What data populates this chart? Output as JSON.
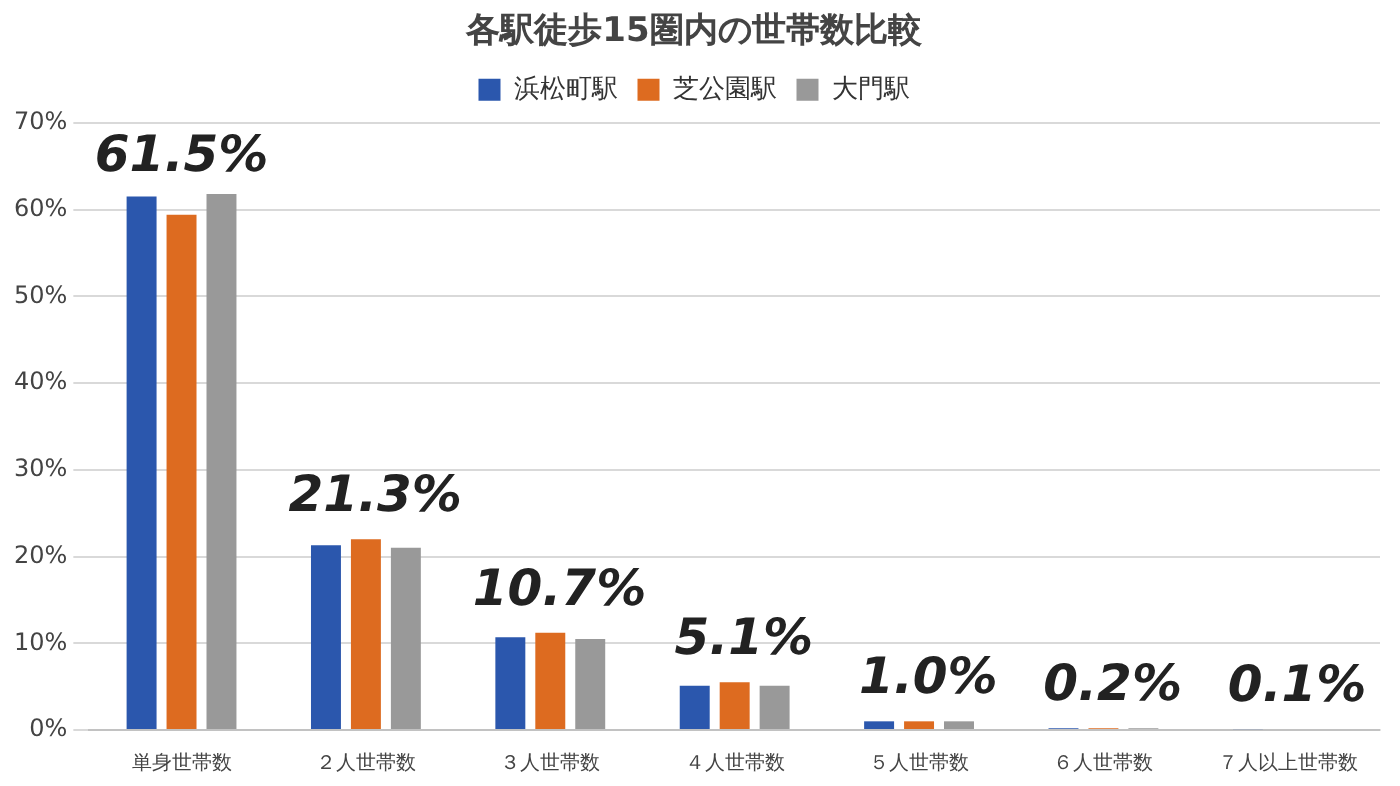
{
  "chart_data": {
    "type": "bar",
    "title": "各駅徒歩15圏内の世帯数比較",
    "categories": [
      "単身世帯数",
      "２人世帯数",
      "３人世帯数",
      "４人世帯数",
      "５人世帯数",
      "６人世帯数",
      "７人以上世帯数"
    ],
    "series": [
      {
        "name": "浜松町駅",
        "color": "#2b57ad",
        "values": [
          61.5,
          21.3,
          10.7,
          5.1,
          1.0,
          0.2,
          0.1
        ],
        "value_labels": [
          "61.5%",
          "21.3%",
          "10.7%",
          "5.1%",
          "1.0%",
          "0.2%",
          "0.1%"
        ]
      },
      {
        "name": "芝公園駅",
        "color": "#dd6b20",
        "values": [
          59.4,
          22.0,
          11.2,
          5.5,
          1.0,
          0.2,
          null
        ]
      },
      {
        "name": "大門駅",
        "color": "#999999",
        "values": [
          61.8,
          21.0,
          10.5,
          5.1,
          1.0,
          0.2,
          null
        ]
      }
    ],
    "ylim": [
      0,
      70
    ],
    "yticks": [
      {
        "value": 0,
        "label": "0%"
      },
      {
        "value": 10,
        "label": "10%"
      },
      {
        "value": 20,
        "label": "20%"
      },
      {
        "value": 30,
        "label": "30%"
      },
      {
        "value": 40,
        "label": "40%"
      },
      {
        "value": 50,
        "label": "50%"
      },
      {
        "value": 60,
        "label": "60%"
      },
      {
        "value": 70,
        "label": "70%"
      }
    ],
    "grid": "y",
    "legend": "top"
  }
}
